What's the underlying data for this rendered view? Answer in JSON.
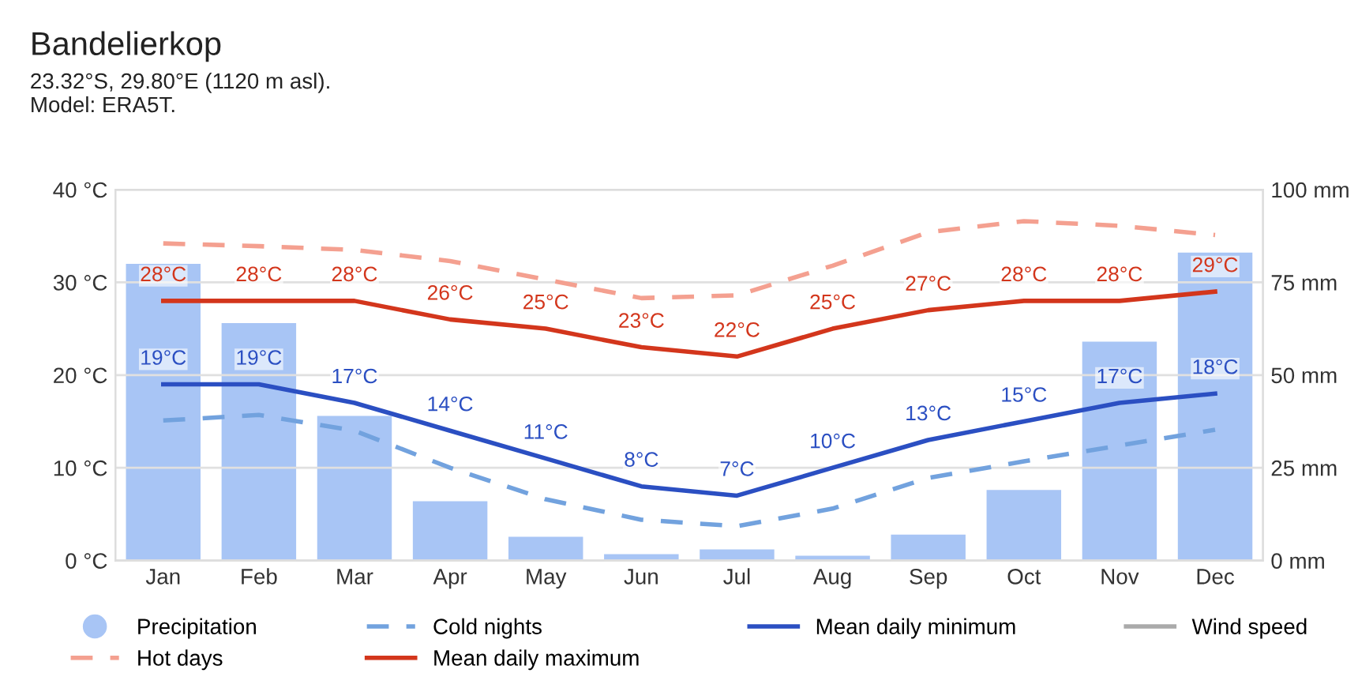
{
  "chart_data": {
    "type": "line",
    "title": "Bandelierkop",
    "subtitle": "23.32°S, 29.80°E (1120 m asl).\nModel: ERA5T.",
    "categories": [
      "Jan",
      "Feb",
      "Mar",
      "Apr",
      "May",
      "Jun",
      "Jul",
      "Aug",
      "Sep",
      "Oct",
      "Nov",
      "Dec"
    ],
    "ylim": [
      0,
      40
    ],
    "yticks": [
      {
        "value": 0,
        "label": "0 °C"
      },
      {
        "value": 10,
        "label": "10 °C"
      },
      {
        "value": 20,
        "label": "20 °C"
      },
      {
        "value": 30,
        "label": "30 °C"
      },
      {
        "value": 40,
        "label": "40 °C"
      }
    ],
    "y2lim": [
      0,
      100
    ],
    "y2ticks": [
      {
        "value": 0,
        "label": "0 mm"
      },
      {
        "value": 25,
        "label": "25 mm"
      },
      {
        "value": 50,
        "label": "50 mm"
      },
      {
        "value": 75,
        "label": "75 mm"
      },
      {
        "value": 100,
        "label": "100 mm"
      }
    ],
    "grid": "y",
    "legend": "bottom",
    "marker": "none",
    "series": [
      {
        "name": "Precipitation",
        "type": "bar",
        "axis": "y2",
        "color": "#a8c5f5",
        "values": [
          80,
          64,
          39,
          16,
          6.4,
          1.7,
          3,
          1.3,
          7,
          19,
          59,
          83
        ]
      },
      {
        "name": "Hot days",
        "color": "#f4a090",
        "line_style": "dashed",
        "values": [
          34.2,
          33.9,
          33.5,
          32.3,
          30.3,
          28.3,
          28.6,
          31.8,
          35.4,
          36.6,
          36.1,
          35.1
        ]
      },
      {
        "name": "Cold nights",
        "color": "#72a2de",
        "line_style": "dashed",
        "values": [
          15.1,
          15.7,
          14,
          10,
          6.6,
          4.4,
          3.7,
          5.6,
          8.9,
          10.7,
          12.4,
          14.1
        ]
      },
      {
        "name": "Mean daily maximum",
        "color": "#d3361c",
        "line_style": "solid",
        "values": [
          28,
          28,
          28,
          26,
          25,
          23,
          22,
          25,
          27,
          28,
          28,
          29
        ],
        "value_labels": [
          "28°C",
          "28°C",
          "28°C",
          "26°C",
          "25°C",
          "23°C",
          "22°C",
          "25°C",
          "27°C",
          "28°C",
          "28°C",
          "29°C"
        ]
      },
      {
        "name": "Mean daily minimum",
        "color": "#2b4fc2",
        "line_style": "solid",
        "values": [
          19,
          19,
          17,
          14,
          11,
          8,
          7,
          10,
          13,
          15,
          17,
          18
        ],
        "value_labels": [
          "19°C",
          "19°C",
          "17°C",
          "14°C",
          "11°C",
          "8°C",
          "7°C",
          "10°C",
          "13°C",
          "15°C",
          "17°C",
          "18°C"
        ]
      },
      {
        "name": "Wind speed",
        "color": "#aaaaaa",
        "line_style": "solid",
        "values": [
          null,
          null,
          null,
          null,
          null,
          null,
          null,
          null,
          null,
          null,
          null,
          null
        ]
      }
    ]
  }
}
